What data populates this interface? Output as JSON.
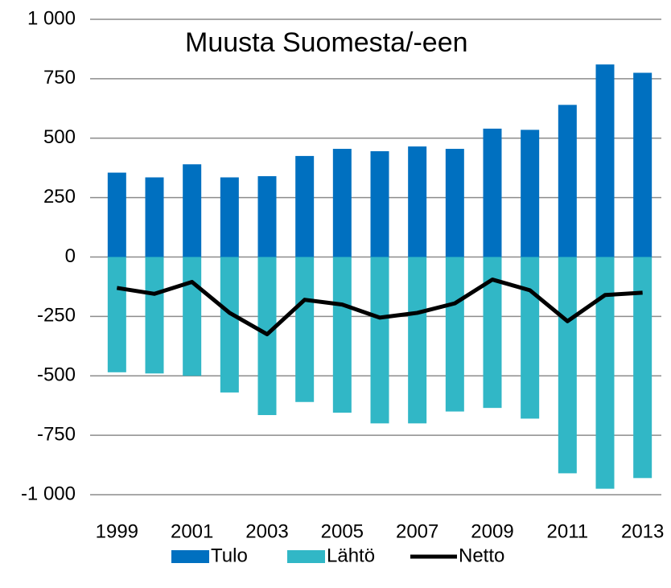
{
  "chart_data": {
    "type": "bar",
    "title": "Muusta Suomesta/-een",
    "categories": [
      "1999",
      null,
      "2001",
      null,
      "2003",
      null,
      "2005",
      null,
      "2007",
      null,
      "2009",
      null,
      "2011",
      null,
      "2013"
    ],
    "series": [
      {
        "name": "Tulo",
        "color": "#0070c0",
        "values": [
          355,
          335,
          390,
          335,
          340,
          425,
          455,
          445,
          465,
          455,
          540,
          535,
          640,
          810,
          775
        ]
      },
      {
        "name": "Lähtö",
        "color": "#31b7c6",
        "values": [
          -485,
          -490,
          -500,
          -570,
          -665,
          -610,
          -655,
          -700,
          -700,
          -650,
          -635,
          -680,
          -910,
          -975,
          -930
        ]
      },
      {
        "name": "Netto",
        "color": "#000000",
        "type": "line",
        "values": [
          -130,
          -155,
          -105,
          -235,
          -325,
          -180,
          -200,
          -255,
          -235,
          -195,
          -95,
          -140,
          -270,
          -160,
          -150
        ]
      }
    ],
    "ylim": [
      -1000,
      1000
    ],
    "yticks": [
      {
        "value": -1000,
        "label": "-1 000"
      },
      -750,
      -500,
      -250,
      0,
      250,
      500,
      750,
      {
        "value": 1000,
        "label": "1 000"
      }
    ],
    "grid": true,
    "legend": "bottom"
  }
}
